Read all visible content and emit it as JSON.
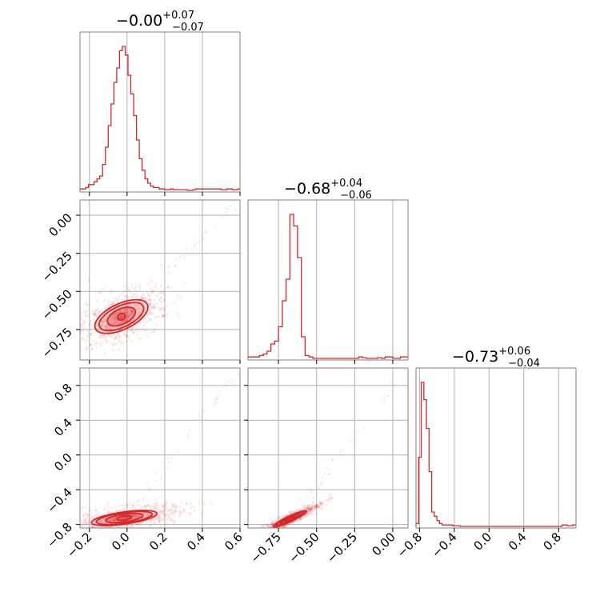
{
  "chart_data": {
    "type": "corner",
    "color": "#d62728",
    "grid": true,
    "parameters": [
      {
        "title_main": "−0.00",
        "title_plus": "+0.07",
        "title_minus": "−0.07"
      },
      {
        "title_main": "−0.68",
        "title_plus": "+0.04",
        "title_minus": "−0.06"
      },
      {
        "title_main": "−0.73",
        "title_plus": "+0.06",
        "title_minus": "−0.04"
      }
    ],
    "axes": {
      "p0": {
        "range": [
          -0.25,
          0.6
        ],
        "ticks": [
          -0.2,
          0.0,
          0.2,
          0.4,
          0.6
        ],
        "tick_labels": [
          "−0.2",
          "0.0",
          "0.2",
          "0.4",
          "0.6"
        ]
      },
      "p1": {
        "range": [
          -0.95,
          0.1
        ],
        "ticks": [
          -0.75,
          -0.5,
          -0.25,
          0.0
        ],
        "tick_labels": [
          "−0.75",
          "−0.50",
          "−0.25",
          "0.00"
        ]
      },
      "p2": {
        "range": [
          -0.84,
          1.0
        ],
        "ticks": [
          -0.8,
          -0.4,
          0.0,
          0.4,
          0.8
        ],
        "tick_labels": [
          "−0.8",
          "−0.4",
          "0.0",
          "0.4",
          "0.8"
        ]
      }
    },
    "histograms": [
      {
        "param": "p0",
        "bin_edges": [
          -0.25,
          -0.235,
          -0.22,
          -0.205,
          -0.19,
          -0.175,
          -0.16,
          -0.145,
          -0.13,
          -0.115,
          -0.1,
          -0.085,
          -0.07,
          -0.055,
          -0.04,
          -0.025,
          -0.01,
          0.005,
          0.02,
          0.035,
          0.05,
          0.065,
          0.08,
          0.095,
          0.11,
          0.125,
          0.14,
          0.155,
          0.17,
          0.185,
          0.2,
          0.215,
          0.23,
          0.245,
          0.26,
          0.275,
          0.29,
          0.305,
          0.32,
          0.335,
          0.35,
          0.365,
          0.38,
          0.395,
          0.41,
          0.425,
          0.44,
          0.455,
          0.47,
          0.485,
          0.5,
          0.515,
          0.53,
          0.545,
          0.56,
          0.575,
          0.59,
          0.6
        ],
        "counts": [
          1,
          1,
          2,
          4,
          4,
          6,
          8,
          10,
          18,
          30,
          45,
          60,
          75,
          85,
          97,
          100,
          94,
          80,
          67,
          52,
          35,
          22,
          14,
          8,
          5,
          3,
          2,
          2,
          1,
          1,
          0.5,
          0.5,
          1,
          0.5,
          0.5,
          0.5,
          0.5,
          0.5,
          0,
          0,
          0.5,
          1,
          1,
          1,
          1,
          1,
          1,
          1,
          1,
          1,
          0.5,
          0.5,
          1,
          1,
          0.5,
          0.5,
          1
        ]
      },
      {
        "param": "p1",
        "bin_edges": [
          -0.95,
          -0.925,
          -0.9,
          -0.875,
          -0.85,
          -0.825,
          -0.8,
          -0.775,
          -0.75,
          -0.725,
          -0.7,
          -0.675,
          -0.65,
          -0.625,
          -0.6,
          -0.575,
          -0.55,
          -0.525,
          -0.5,
          -0.475,
          -0.45,
          -0.425,
          -0.4,
          -0.375,
          -0.35,
          -0.325,
          -0.3,
          -0.275,
          -0.25,
          -0.225,
          -0.2,
          -0.175,
          -0.15,
          -0.125,
          -0.1,
          -0.075,
          -0.05,
          -0.025,
          0.0,
          0.025,
          0.05,
          0.075,
          0.1
        ],
        "counts": [
          1,
          1,
          1,
          2,
          3,
          5,
          10,
          12,
          22,
          40,
          55,
          100,
          92,
          70,
          15,
          2,
          1,
          0,
          0,
          0,
          0,
          0,
          0,
          0,
          0,
          0,
          0,
          0,
          0,
          1,
          0.5,
          0,
          0,
          0,
          0.5,
          0,
          1,
          1,
          0,
          0,
          1,
          1
        ]
      },
      {
        "param": "p2",
        "bin_edges": [
          -0.84,
          -0.81,
          -0.78,
          -0.75,
          -0.72,
          -0.69,
          -0.66,
          -0.63,
          -0.6,
          -0.57,
          -0.54,
          -0.51,
          -0.48,
          -0.45,
          -0.42,
          -0.39,
          -0.36,
          -0.33,
          -0.3,
          -0.27,
          -0.24,
          -0.21,
          -0.18,
          -0.15,
          -0.12,
          -0.09,
          -0.06,
          -0.03,
          0.0,
          0.03,
          0.06,
          0.09,
          0.12,
          0.15,
          0.18,
          0.21,
          0.24,
          0.27,
          0.3,
          0.33,
          0.36,
          0.39,
          0.42,
          0.45,
          0.48,
          0.51,
          0.54,
          0.57,
          0.6,
          0.63,
          0.66,
          0.69,
          0.72,
          0.75,
          0.78,
          0.81,
          0.84,
          0.87,
          0.9,
          0.93,
          0.96,
          1.0
        ],
        "counts": [
          2,
          48,
          100,
          88,
          68,
          38,
          10,
          7,
          4,
          2,
          1,
          1,
          1,
          1,
          0.5,
          0.5,
          0.5,
          0,
          0,
          0,
          0,
          0,
          0,
          0,
          0,
          0,
          0,
          0,
          0,
          0,
          0,
          0,
          0,
          0,
          0,
          0,
          0,
          0,
          0,
          0,
          0,
          0,
          0,
          0,
          0,
          0,
          0,
          0,
          0,
          0,
          0,
          0,
          0,
          0,
          0,
          0,
          1,
          1,
          0.5,
          0.5,
          1
        ]
      }
    ],
    "contours": [
      {
        "x": "p0",
        "y": "p1",
        "center": [
          -0.03,
          -0.665
        ],
        "levels": [
          {
            "rx": 0.021,
            "ry": 0.022,
            "rot": -25
          },
          {
            "rx": 0.08,
            "ry": 0.05,
            "rot": -25
          },
          {
            "rx": 0.128,
            "ry": 0.07,
            "rot": -25
          },
          {
            "rx": 0.152,
            "ry": 0.085,
            "rot": -25
          }
        ]
      },
      {
        "x": "p0",
        "y": "p2",
        "center": [
          -0.015,
          -0.725
        ],
        "levels": [
          {
            "rx": 0.04,
            "ry": 0.025,
            "rot": -8
          },
          {
            "rx": 0.1,
            "ry": 0.045,
            "rot": -8
          },
          {
            "rx": 0.15,
            "ry": 0.06,
            "rot": -8
          },
          {
            "rx": 0.175,
            "ry": 0.07,
            "rot": -8
          }
        ]
      },
      {
        "x": "p1",
        "y": "p2",
        "center": [
          -0.675,
          -0.735
        ],
        "levels": [
          {
            "rx": 0.035,
            "ry": 0.012,
            "rot": -25
          },
          {
            "rx": 0.07,
            "ry": 0.02,
            "rot": -25
          },
          {
            "rx": 0.1,
            "ry": 0.027,
            "rot": -25
          },
          {
            "rx": 0.12,
            "ry": 0.032,
            "rot": -25
          }
        ]
      }
    ]
  }
}
